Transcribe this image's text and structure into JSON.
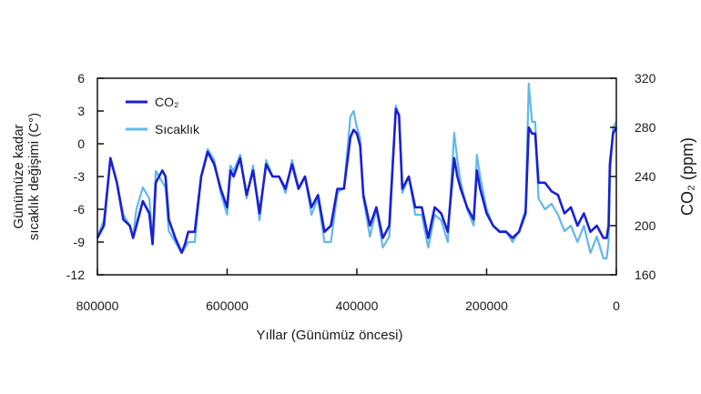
{
  "chart_data": {
    "type": "line",
    "title": "",
    "xlabel": "Yıllar (Günümüz öncesi)",
    "ylabel_left_lines": [
      "Günümüze kadar",
      "sıcaklık değişimi (C°)"
    ],
    "ylabel_right": "CO₂ (ppm)",
    "xlim": [
      800000,
      0
    ],
    "ylim_left": [
      -12,
      6
    ],
    "ylim_right": [
      160,
      320
    ],
    "x_ticks": [
      800000,
      600000,
      400000,
      200000,
      0
    ],
    "y_ticks_left": [
      6,
      3,
      0,
      -3,
      -6,
      -9,
      -12
    ],
    "y_ticks_right": [
      320,
      280,
      240,
      200,
      160
    ],
    "legend": {
      "position": "top-left"
    },
    "series": [
      {
        "name": "CO₂",
        "axis": "right",
        "color": "#1a1fd6",
        "x": [
          800000,
          790000,
          780000,
          770000,
          760000,
          750000,
          745000,
          740000,
          730000,
          720000,
          715000,
          710000,
          700000,
          695000,
          690000,
          680000,
          670000,
          665000,
          660000,
          650000,
          640000,
          630000,
          620000,
          610000,
          600000,
          595000,
          590000,
          580000,
          570000,
          560000,
          550000,
          540000,
          530000,
          520000,
          510000,
          500000,
          490000,
          480000,
          470000,
          460000,
          450000,
          440000,
          430000,
          420000,
          410000,
          405000,
          400000,
          395000,
          390000,
          380000,
          370000,
          360000,
          350000,
          340000,
          335000,
          330000,
          320000,
          310000,
          300000,
          290000,
          280000,
          270000,
          260000,
          250000,
          245000,
          240000,
          230000,
          220000,
          215000,
          210000,
          200000,
          190000,
          180000,
          170000,
          160000,
          150000,
          140000,
          135000,
          130000,
          125000,
          120000,
          110000,
          100000,
          90000,
          80000,
          70000,
          60000,
          50000,
          40000,
          30000,
          20000,
          15000,
          12000,
          10000,
          5000,
          0
        ],
        "values": [
          190,
          200,
          255,
          235,
          205,
          200,
          190,
          200,
          220,
          210,
          185,
          235,
          245,
          240,
          205,
          190,
          178,
          185,
          195,
          195,
          240,
          260,
          250,
          230,
          215,
          245,
          240,
          255,
          225,
          245,
          210,
          250,
          240,
          240,
          230,
          250,
          230,
          240,
          215,
          225,
          195,
          200,
          230,
          230,
          272,
          278,
          275,
          265,
          225,
          200,
          215,
          190,
          200,
          295,
          290,
          230,
          240,
          215,
          215,
          190,
          215,
          210,
          195,
          255,
          240,
          230,
          215,
          205,
          245,
          230,
          210,
          200,
          195,
          195,
          190,
          195,
          210,
          280,
          275,
          275,
          235,
          235,
          228,
          225,
          210,
          215,
          200,
          210,
          195,
          200,
          190,
          190,
          200,
          250,
          275,
          280
        ]
      },
      {
        "name": "Sıcaklık",
        "axis": "left",
        "color": "#62b8ea",
        "x": [
          800000,
          790000,
          780000,
          770000,
          760000,
          750000,
          745000,
          740000,
          730000,
          720000,
          715000,
          710000,
          700000,
          695000,
          690000,
          680000,
          670000,
          665000,
          660000,
          650000,
          640000,
          630000,
          620000,
          610000,
          600000,
          595000,
          590000,
          580000,
          570000,
          560000,
          550000,
          540000,
          530000,
          520000,
          510000,
          500000,
          490000,
          480000,
          470000,
          460000,
          450000,
          440000,
          430000,
          420000,
          410000,
          405000,
          400000,
          395000,
          390000,
          380000,
          370000,
          360000,
          350000,
          340000,
          335000,
          330000,
          320000,
          310000,
          300000,
          290000,
          280000,
          270000,
          260000,
          250000,
          245000,
          240000,
          230000,
          220000,
          215000,
          210000,
          200000,
          190000,
          180000,
          170000,
          160000,
          150000,
          140000,
          135000,
          130000,
          125000,
          120000,
          110000,
          100000,
          90000,
          80000,
          70000,
          60000,
          50000,
          40000,
          30000,
          20000,
          15000,
          12000,
          10000,
          5000,
          0
        ],
        "values": [
          -8.5,
          -7,
          -1.5,
          -3.5,
          -6.5,
          -7.5,
          -8.5,
          -6,
          -4,
          -5,
          -9,
          -2.5,
          -3.5,
          -4,
          -8,
          -9,
          -10,
          -9.5,
          -9,
          -9,
          -3,
          -0.5,
          -1.5,
          -4.5,
          -6.5,
          -2,
          -2.5,
          -1,
          -5,
          -2,
          -7,
          -1.5,
          -3,
          -3,
          -4.5,
          -1.5,
          -4,
          -3,
          -6.5,
          -5,
          -9,
          -9,
          -4.5,
          -4,
          2.5,
          3,
          1.5,
          0.5,
          -5,
          -8.5,
          -6,
          -9.5,
          -8.5,
          3.5,
          2.5,
          -4.5,
          -3,
          -6.5,
          -6.5,
          -9.5,
          -6.5,
          -7,
          -9,
          1,
          -1.5,
          -3.5,
          -6,
          -7.5,
          -1,
          -3,
          -6,
          -7.5,
          -8,
          -8,
          -9,
          -8,
          -6,
          5.5,
          2,
          2,
          -5,
          -6,
          -5.5,
          -6.5,
          -8,
          -7.5,
          -9,
          -7.5,
          -10,
          -8.5,
          -10.5,
          -10.5,
          -9,
          -3,
          1.5,
          2
        ]
      }
    ]
  }
}
